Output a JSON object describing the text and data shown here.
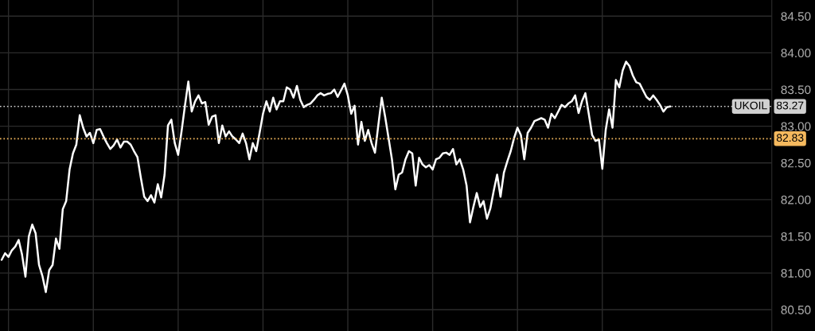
{
  "chart_data": {
    "type": "line",
    "categories": [
      null,
      null,
      null,
      null,
      null,
      null,
      null,
      null,
      null,
      null,
      null,
      null,
      null,
      null,
      null,
      null,
      null,
      null,
      null,
      null,
      null,
      null,
      null,
      null,
      null,
      null,
      null,
      null,
      null,
      null,
      null,
      null,
      null,
      null,
      null,
      null,
      null,
      null,
      null,
      null,
      null,
      null,
      null,
      null,
      null,
      null,
      null,
      null,
      null,
      null,
      null,
      null,
      null,
      null,
      null,
      null,
      null,
      null,
      null,
      null,
      null,
      null,
      null,
      null,
      null,
      null,
      null,
      null,
      null,
      null,
      null,
      null,
      null,
      null,
      null,
      null,
      null,
      null,
      null,
      null,
      null,
      null,
      null,
      null,
      null,
      null,
      null,
      null,
      null,
      null,
      null,
      null,
      null,
      null,
      null,
      null,
      null,
      null,
      null,
      null,
      null,
      null,
      null,
      null,
      null,
      null,
      null,
      null,
      null,
      null,
      null,
      null,
      null,
      null,
      null,
      null,
      null,
      null,
      null,
      null,
      null,
      null,
      null,
      null,
      null,
      null,
      null,
      null,
      null,
      null,
      null,
      null,
      null,
      null,
      null,
      null,
      null,
      null,
      null,
      null,
      null,
      null,
      null,
      null,
      null,
      null,
      null,
      null,
      null,
      null,
      null,
      null,
      null,
      null,
      null,
      null,
      null,
      null,
      null,
      null,
      null,
      null,
      null,
      null,
      null,
      null,
      null,
      null,
      null,
      null,
      null,
      null,
      null,
      null,
      null,
      null,
      null,
      null,
      null,
      null,
      null,
      null,
      null,
      null,
      null,
      null,
      null,
      null,
      null,
      null,
      null,
      null,
      null,
      null,
      null,
      null,
      null,
      null
    ],
    "series": [
      {
        "color": "#ffffff",
        "values": [
          81.18,
          81.27,
          81.22,
          81.31,
          81.36,
          81.45,
          81.25,
          80.95,
          81.5,
          81.66,
          81.54,
          81.11,
          80.96,
          80.74,
          81.04,
          81.11,
          81.47,
          81.33,
          81.87,
          81.98,
          82.41,
          82.63,
          82.75,
          83.15,
          82.98,
          82.86,
          82.91,
          82.77,
          82.95,
          82.96,
          82.86,
          82.77,
          82.69,
          82.74,
          82.82,
          82.71,
          82.79,
          82.79,
          82.75,
          82.66,
          82.58,
          82.3,
          82.04,
          81.98,
          82.06,
          81.96,
          82.21,
          82.03,
          82.34,
          83.01,
          83.09,
          82.77,
          82.61,
          82.93,
          83.28,
          83.61,
          83.2,
          83.34,
          83.42,
          83.31,
          83.33,
          83.02,
          83.13,
          83.15,
          82.77,
          83.01,
          82.86,
          82.93,
          82.86,
          82.82,
          82.77,
          82.9,
          82.77,
          82.55,
          82.77,
          82.66,
          82.91,
          83.17,
          83.34,
          83.2,
          83.39,
          83.23,
          83.34,
          83.34,
          83.53,
          83.5,
          83.39,
          83.55,
          83.36,
          83.26,
          83.29,
          83.31,
          83.36,
          83.42,
          83.45,
          83.42,
          83.44,
          83.45,
          83.5,
          83.4,
          83.49,
          83.58,
          83.42,
          83.17,
          83.28,
          82.75,
          83.06,
          82.8,
          82.95,
          82.77,
          82.64,
          83.02,
          83.39,
          83.13,
          82.84,
          82.55,
          82.14,
          82.34,
          82.37,
          82.55,
          82.66,
          82.63,
          82.19,
          82.57,
          82.48,
          82.44,
          82.47,
          82.41,
          82.55,
          82.57,
          82.63,
          82.64,
          82.61,
          82.69,
          82.48,
          82.55,
          82.41,
          82.19,
          81.69,
          81.9,
          82.09,
          81.9,
          81.98,
          81.74,
          81.88,
          82.12,
          82.34,
          82.04,
          82.37,
          82.52,
          82.66,
          82.84,
          82.98,
          82.88,
          82.55,
          82.91,
          82.98,
          83.07,
          83.09,
          83.11,
          83.09,
          82.98,
          83.17,
          83.11,
          83.2,
          83.29,
          83.26,
          83.31,
          83.34,
          83.42,
          83.18,
          83.34,
          83.45,
          83.17,
          82.88,
          82.8,
          82.82,
          82.42,
          82.95,
          83.23,
          82.98,
          83.63,
          83.53,
          83.76,
          83.88,
          83.82,
          83.69,
          83.6,
          83.58,
          83.49,
          83.4,
          83.36,
          83.42,
          83.36,
          83.29,
          83.2,
          83.26,
          83.27
        ]
      }
    ],
    "ylim": [
      80.21,
      84.72
    ],
    "yticks": [
      {
        "value": 80.5,
        "label": "80.50"
      },
      {
        "value": 81,
        "label": "81.00"
      },
      {
        "value": 81.5,
        "label": "81.50"
      },
      {
        "value": 82,
        "label": "82.00"
      },
      {
        "value": 82.5,
        "label": "82.50"
      },
      {
        "value": 83,
        "label": "83.00"
      },
      {
        "value": 83.5,
        "label": "83.50"
      },
      {
        "value": 84,
        "label": "84.00"
      },
      {
        "value": 84.5,
        "label": "84.50"
      }
    ],
    "ref_lines": [
      {
        "axis": "y",
        "value": 83.27,
        "label": "UKOIL",
        "color": "#d0d0d0",
        "line_style": "dotted"
      },
      {
        "axis": "y",
        "value": 82.83,
        "color": "#f5b95e",
        "line_style": "dotted"
      }
    ],
    "annotations": [
      "83.27",
      "82.83"
    ],
    "grid": true,
    "tick_labels": "y",
    "line_style": "solid"
  }
}
